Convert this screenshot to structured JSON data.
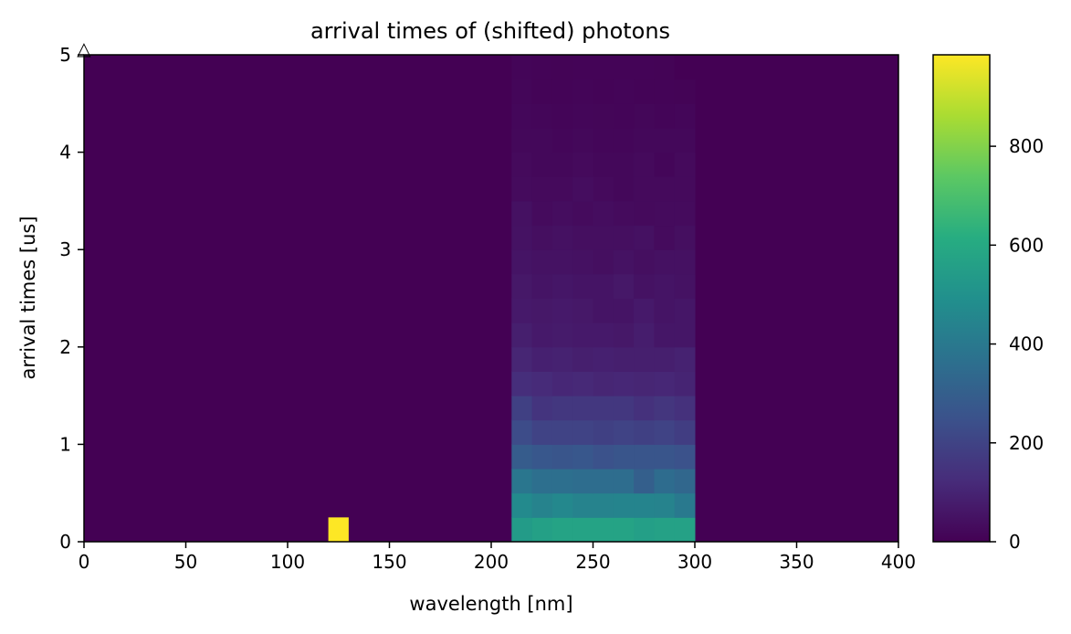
{
  "chart_data": {
    "type": "heatmap",
    "title": "arrival times of (shifted) photons",
    "xlabel": "wavelength [nm]",
    "ylabel": "arrival times [us]",
    "xlim": [
      0,
      400
    ],
    "ylim": [
      0,
      5
    ],
    "x_ticks": [
      "0",
      "50",
      "100",
      "150",
      "200",
      "250",
      "300",
      "350",
      "400"
    ],
    "y_ticks": [
      "0",
      "1",
      "2",
      "3",
      "4",
      "5"
    ],
    "colormap": "viridis",
    "background_value": 0,
    "colorbar": {
      "range": [
        0,
        985
      ],
      "ticks": [
        "0",
        "200",
        "400",
        "600",
        "800"
      ]
    },
    "bins": {
      "x_edges": [
        210,
        220,
        230,
        240,
        250,
        260,
        270,
        280,
        290,
        300
      ],
      "y_bin_width": 0.25
    },
    "hot_cell": {
      "x_range": [
        120,
        130
      ],
      "y_range": [
        0,
        0.25
      ],
      "value": 985
    },
    "rows": [
      [
        540,
        560,
        575,
        575,
        575,
        575,
        555,
        565,
        565
      ],
      [
        470,
        440,
        460,
        440,
        440,
        445,
        445,
        440,
        400
      ],
      [
        390,
        360,
        360,
        355,
        355,
        355,
        300,
        350,
        330
      ],
      [
        290,
        270,
        260,
        270,
        250,
        260,
        260,
        260,
        250
      ],
      [
        230,
        200,
        200,
        200,
        190,
        200,
        190,
        200,
        180
      ],
      [
        190,
        150,
        160,
        160,
        160,
        160,
        140,
        155,
        140
      ],
      [
        130,
        120,
        110,
        115,
        105,
        110,
        105,
        110,
        100
      ],
      [
        105,
        90,
        95,
        85,
        90,
        85,
        85,
        85,
        95
      ],
      [
        85,
        70,
        75,
        70,
        70,
        65,
        80,
        60,
        60
      ],
      [
        70,
        65,
        70,
        65,
        55,
        55,
        70,
        55,
        60
      ],
      [
        65,
        55,
        60,
        55,
        55,
        65,
        50,
        55,
        50
      ],
      [
        55,
        50,
        50,
        45,
        40,
        50,
        40,
        45,
        45
      ],
      [
        50,
        40,
        45,
        40,
        40,
        40,
        45,
        30,
        40
      ],
      [
        45,
        30,
        35,
        30,
        35,
        30,
        25,
        30,
        30
      ],
      [
        30,
        25,
        25,
        35,
        25,
        20,
        25,
        25,
        25
      ],
      [
        25,
        20,
        20,
        25,
        20,
        20,
        25,
        15,
        25
      ],
      [
        20,
        20,
        15,
        20,
        15,
        15,
        20,
        20,
        20
      ],
      [
        18,
        15,
        12,
        15,
        14,
        12,
        16,
        12,
        15
      ],
      [
        15,
        10,
        10,
        12,
        10,
        12,
        10,
        10,
        8
      ],
      [
        12,
        10,
        8,
        10,
        9,
        10,
        10,
        8,
        0
      ]
    ]
  },
  "marker": {
    "symbol": "△"
  }
}
